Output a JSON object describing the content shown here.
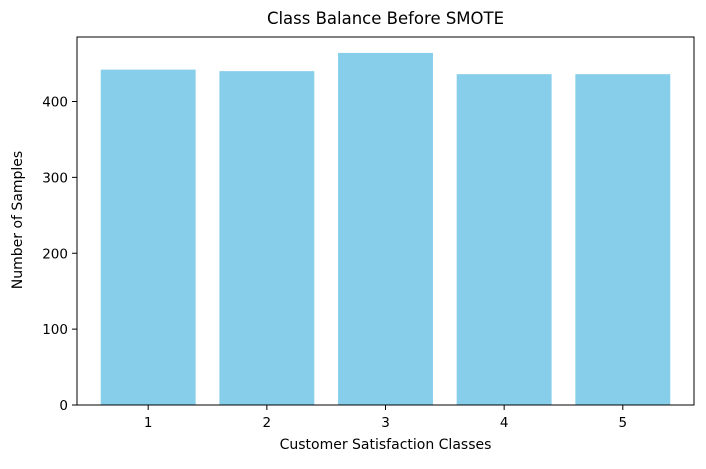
{
  "chart_data": {
    "type": "bar",
    "title": "Class Balance Before SMOTE",
    "xlabel": "Customer Satisfaction Classes",
    "ylabel": "Number of Samples",
    "categories": [
      "1",
      "2",
      "3",
      "4",
      "5"
    ],
    "values": [
      442,
      440,
      464,
      436,
      436
    ],
    "ylim": [
      0,
      485
    ],
    "yticks": [
      0,
      100,
      200,
      300,
      400
    ],
    "grid": false,
    "bar_color": "#87ceeb"
  }
}
